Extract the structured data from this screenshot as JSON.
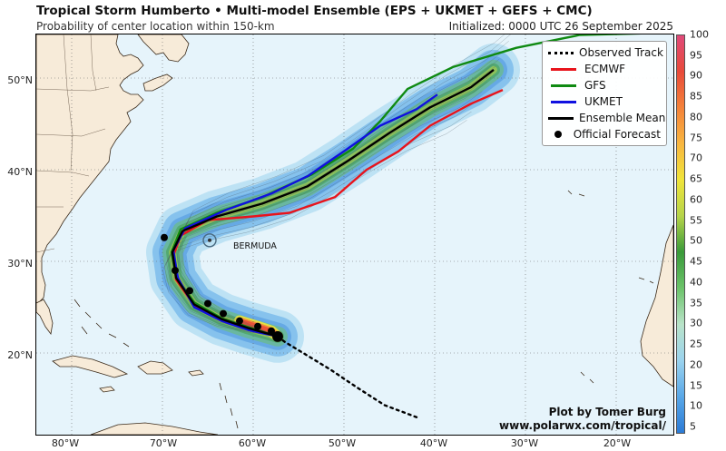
{
  "header": {
    "title": "Tropical Storm Humberto • Multi-model Ensemble (EPS + UKMET + GEFS + CMC)",
    "subtitle": "Probability of center location within 150-km",
    "initialized": "Initialized: 0000 UTC 26 September 2025"
  },
  "axes": {
    "lat_labels": [
      "50°N",
      "40°N",
      "30°N",
      "20°N"
    ],
    "lat_values": [
      50,
      40,
      30,
      20
    ],
    "lon_labels": [
      "80°W",
      "70°W",
      "60°W",
      "50°W",
      "40°W",
      "30°W",
      "20°W"
    ],
    "lon_values": [
      -80,
      -70,
      -60,
      -50,
      -40,
      -30,
      -20
    ]
  },
  "legend": {
    "items": [
      {
        "label": "Observed Track",
        "style": "dotted",
        "color": "#000000"
      },
      {
        "label": "ECMWF",
        "style": "line",
        "color": "#e8141c"
      },
      {
        "label": "GFS",
        "style": "line",
        "color": "#0f8a12"
      },
      {
        "label": "UKMET",
        "style": "line",
        "color": "#1010e0"
      },
      {
        "label": "Ensemble Mean",
        "style": "line",
        "color": "#000000"
      },
      {
        "label": "Official Forecast",
        "style": "dot",
        "color": "#000000"
      }
    ]
  },
  "colorbar": {
    "ticks": [
      "100",
      "95",
      "90",
      "85",
      "80",
      "75",
      "70",
      "65",
      "60",
      "55",
      "50",
      "45",
      "40",
      "35",
      "30",
      "25",
      "20",
      "15",
      "10",
      "5"
    ],
    "colors": [
      "#2b7bd6",
      "#5aa8e8",
      "#9bd3ee",
      "#b9e3c9",
      "#6cc36a",
      "#3a9a3a",
      "#b6d44a",
      "#f0e43a",
      "#f8b640",
      "#f4823a",
      "#e84a3a",
      "#e04a7a"
    ]
  },
  "map_label": "BERMUDA",
  "credit": {
    "line1": "Plot by Tomer Burg",
    "line2": "www.polarwx.com/tropical/"
  },
  "colors": {
    "ocean": "#e6f4fb",
    "land": "#f7ebd9",
    "coast": "#3a2a1a",
    "grid": "#666666"
  },
  "tracks": {
    "observed": [
      [
        -42.0,
        13.0
      ],
      [
        -45.5,
        14.3
      ],
      [
        -48.5,
        16.2
      ],
      [
        -51.5,
        18.2
      ],
      [
        -54.5,
        20.0
      ],
      [
        -56.5,
        21.2
      ],
      [
        -57.3,
        21.8
      ]
    ],
    "ecmwf": [
      [
        -57.3,
        21.8
      ],
      [
        -60.5,
        22.8
      ],
      [
        -63.5,
        23.8
      ],
      [
        -66.5,
        25.2
      ],
      [
        -68.5,
        28.0
      ],
      [
        -68.8,
        30.6
      ],
      [
        -68.0,
        32.8
      ],
      [
        -65.0,
        34.5
      ],
      [
        -60.0,
        34.9
      ],
      [
        -56.0,
        35.3
      ],
      [
        -51.0,
        37.0
      ],
      [
        -47.5,
        40.0
      ],
      [
        -44.0,
        42.0
      ],
      [
        -40.5,
        44.8
      ],
      [
        -36.0,
        47.2
      ],
      [
        -32.5,
        48.7
      ]
    ],
    "gfs": [
      [
        -57.3,
        21.8
      ],
      [
        -60.5,
        22.8
      ],
      [
        -63.5,
        23.8
      ],
      [
        -66.5,
        25.5
      ],
      [
        -68.5,
        28.3
      ],
      [
        -69.0,
        31.0
      ],
      [
        -68.0,
        33.5
      ],
      [
        -64.0,
        35.3
      ],
      [
        -59.0,
        37.0
      ],
      [
        -53.5,
        39.5
      ],
      [
        -49.0,
        42.3
      ],
      [
        -46.0,
        45.3
      ],
      [
        -43.0,
        48.8
      ],
      [
        -38.0,
        51.2
      ],
      [
        -31.0,
        53.3
      ],
      [
        -24.0,
        54.7
      ],
      [
        -16.0,
        54.9
      ]
    ],
    "ukmet": [
      [
        -57.3,
        21.8
      ],
      [
        -60.5,
        22.5
      ],
      [
        -63.5,
        23.5
      ],
      [
        -66.5,
        25.0
      ],
      [
        -68.3,
        28.2
      ],
      [
        -68.8,
        31.2
      ],
      [
        -67.5,
        33.6
      ],
      [
        -63.0,
        35.6
      ],
      [
        -58.0,
        37.4
      ],
      [
        -54.0,
        39.3
      ],
      [
        -50.0,
        42.0
      ],
      [
        -46.0,
        44.8
      ],
      [
        -42.0,
        46.6
      ],
      [
        -39.7,
        48.2
      ]
    ],
    "mean": [
      [
        -57.3,
        21.8
      ],
      [
        -60.5,
        22.7
      ],
      [
        -63.5,
        23.7
      ],
      [
        -66.5,
        25.3
      ],
      [
        -68.5,
        28.2
      ],
      [
        -68.9,
        31.0
      ],
      [
        -67.8,
        33.3
      ],
      [
        -64.0,
        34.9
      ],
      [
        -59.0,
        36.3
      ],
      [
        -54.0,
        38.2
      ],
      [
        -49.5,
        41.0
      ],
      [
        -45.0,
        44.0
      ],
      [
        -40.5,
        46.8
      ],
      [
        -36.0,
        49.0
      ],
      [
        -33.5,
        50.9
      ]
    ],
    "official": [
      [
        -57.3,
        21.8
      ],
      [
        -58.0,
        22.4
      ],
      [
        -59.5,
        22.9
      ],
      [
        -61.5,
        23.5
      ],
      [
        -63.3,
        24.3
      ],
      [
        -65.0,
        25.4
      ],
      [
        -67.0,
        26.8
      ],
      [
        -68.6,
        29.0
      ],
      [
        -69.8,
        32.6
      ]
    ]
  },
  "bermuda_point": [
    -64.8,
    32.3
  ]
}
